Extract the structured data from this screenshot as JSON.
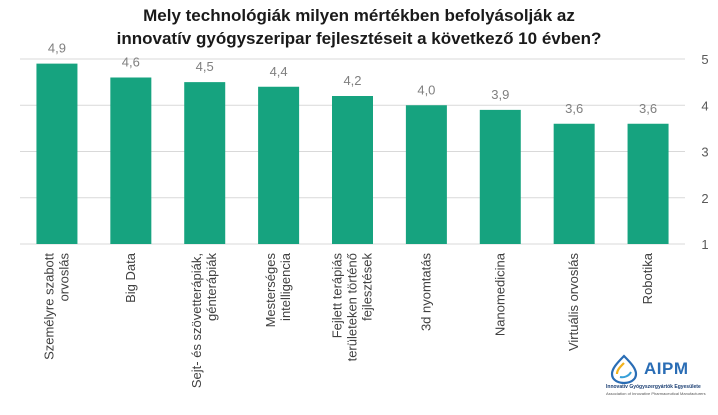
{
  "chart_data": {
    "type": "bar",
    "title_lines": [
      "Mely technológiák milyen mértékben befolyásolják az",
      "innovatív gyógyszeripar fejlesztéseit a következő 10 évben?"
    ],
    "categories": [
      [
        "Személyre szabott",
        "orvoslás"
      ],
      [
        "Big Data"
      ],
      [
        "Sejt- és szövetterápiák,",
        "génterápiák"
      ],
      [
        "Mesterséges",
        "intelligencia"
      ],
      [
        "Fejlett terápiás",
        "területeken történő",
        "fejlesztések"
      ],
      [
        "3d nyomtatás"
      ],
      [
        "Nanomedicina"
      ],
      [
        "Virtuális orvoslás"
      ],
      [
        "Robotika"
      ]
    ],
    "values": [
      4.9,
      4.6,
      4.5,
      4.4,
      4.2,
      4.0,
      3.9,
      3.6,
      3.6
    ],
    "value_labels": [
      "4,9",
      "4,6",
      "4,5",
      "4,4",
      "4,2",
      "4,0",
      "3,9",
      "3,6",
      "3,6"
    ],
    "ylim": [
      1,
      5
    ],
    "yticks": [
      "1",
      "2",
      "3",
      "4",
      "5"
    ],
    "y_axis_position": "right",
    "grid": true,
    "bar_color": "#16a37f",
    "grid_color": "#d9d9d9"
  },
  "logo": {
    "name": "AIPM",
    "line1": "Innovatív Gyógyszergyártók Egyesülete",
    "line2": "Association of Innovative Pharmaceutical Manufacturers",
    "icon": "drop-logo-icon",
    "color": "#2a6db5"
  }
}
